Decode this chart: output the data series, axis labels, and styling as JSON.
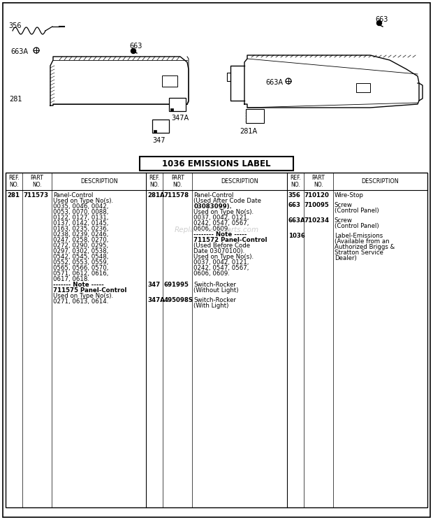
{
  "bg_color": "#ffffff",
  "title_label": "1036 EMISSIONS LABEL",
  "watermark": "Replacementparts.com",
  "col1_entries": [
    {
      "ref": "281",
      "part": "711573",
      "desc": [
        "Panel-Control",
        "Used on Type No(s).",
        "0035, 0046, 0042,",
        "0053, 0070, 0088,",
        "0122, 0127, 0131,",
        "0137, 0142, 0145,",
        "0163, 0235, 0236,",
        "0238, 0239, 0246,",
        "0247, 0258, 0270,",
        "0272, 0290, 0295,",
        "0297, 0302, 0538,",
        "0542, 0545, 0548,",
        "0552, 0553, 0559,",
        "0565, 0566, 0570,",
        "0571, 0612, 0616,",
        "0617, 0618.",
        "------- Note -----",
        "711575 Panel-Control",
        "Used on Type No(s).",
        "0271, 0613, 0614."
      ]
    }
  ],
  "col2_entries": [
    {
      "ref": "281A",
      "part": "711578",
      "desc": [
        "Panel-Control",
        "(Used After Code Date",
        "03083099).",
        "Used on Type No(s).",
        "0037, 0042, 0121,",
        "0242, 0547, 0567,",
        "0606, 0609.",
        "-------- Note -----",
        "711572 Panel-Control",
        "(Used Before Code",
        "Date 03070100).",
        "Used on Type No(s).",
        "0037, 0042, 0121,",
        "0242, 0547, 0567,",
        "0606, 0609."
      ]
    },
    {
      "ref": "347",
      "part": "691995",
      "desc": [
        "Switch-Rocker",
        "(Without Light)"
      ]
    },
    {
      "ref": "347A",
      "part": "495098S",
      "desc": [
        "Switch-Rocker",
        "(With Light)"
      ]
    }
  ],
  "col3_entries": [
    {
      "ref": "356",
      "part": "710120",
      "desc": [
        "Wire-Stop"
      ]
    },
    {
      "ref": "663",
      "part": "710095",
      "desc": [
        "Screw",
        "(Control Panel)"
      ]
    },
    {
      "ref": "663A",
      "part": "710234",
      "desc": [
        "Screw",
        "(Control Panel)"
      ]
    },
    {
      "ref": "1036",
      "part": "",
      "desc": [
        "Label-Emissions",
        "(Available from an",
        "Authorized Briggs &",
        "Stratton Service",
        "Dealer)"
      ]
    }
  ]
}
